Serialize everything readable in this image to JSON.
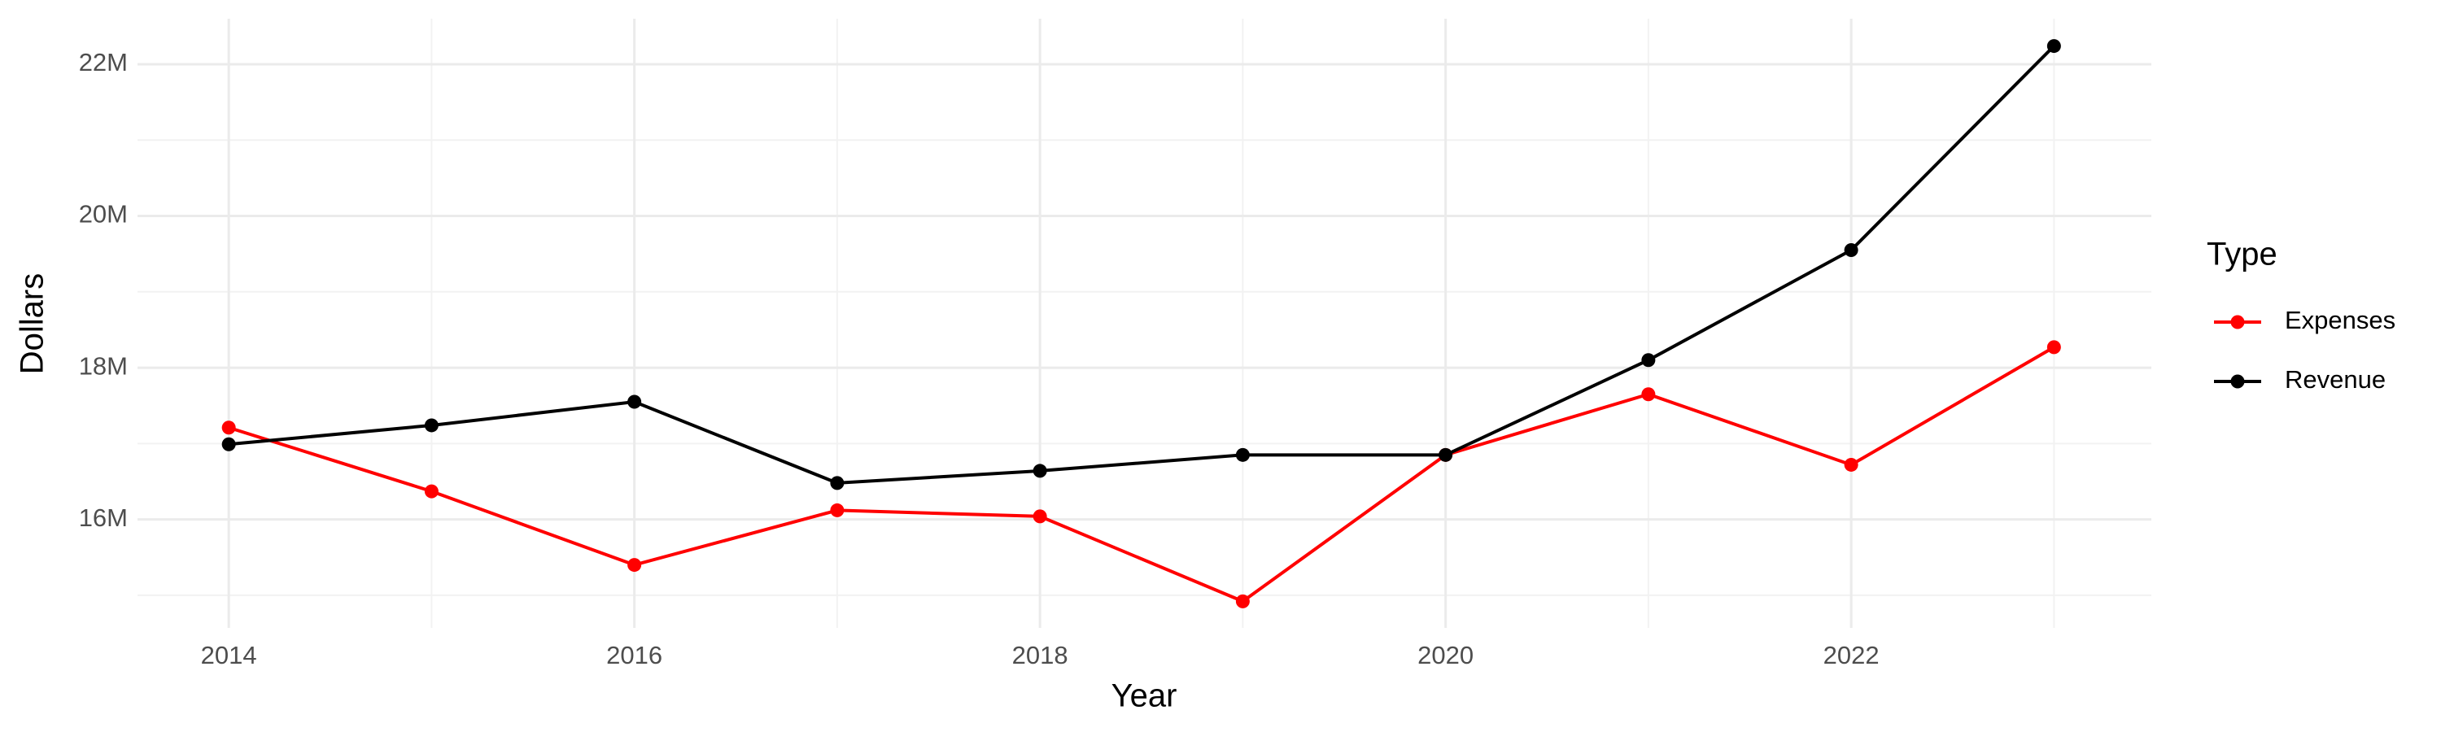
{
  "chart_data": {
    "type": "line",
    "x_label": "Year",
    "y_label": "Dollars",
    "legend_title": "Type",
    "x": [
      2014,
      2015,
      2016,
      2017,
      2018,
      2019,
      2020,
      2021,
      2022,
      2023
    ],
    "series": [
      {
        "name": "Expenses",
        "color": "#ff0000",
        "values": [
          17210000,
          16370000,
          15400000,
          16120000,
          16040000,
          14920000,
          16850000,
          17650000,
          16720000,
          18270000
        ]
      },
      {
        "name": "Revenue",
        "color": "#000000",
        "values": [
          16990000,
          17240000,
          17550000,
          16480000,
          16640000,
          16850000,
          16850000,
          18100000,
          19550000,
          22240000
        ]
      }
    ],
    "xlim": [
      2013.55,
      2023.48
    ],
    "xticks": [
      2014,
      2016,
      2018,
      2020,
      2022
    ],
    "ylim": [
      14570000,
      22600000
    ],
    "yticks": [
      {
        "value": 16000000,
        "label": "16M"
      },
      {
        "value": 18000000,
        "label": "18M"
      },
      {
        "value": 20000000,
        "label": "20M"
      },
      {
        "value": 22000000,
        "label": "22M"
      }
    ],
    "grid": true,
    "legend": "right"
  }
}
